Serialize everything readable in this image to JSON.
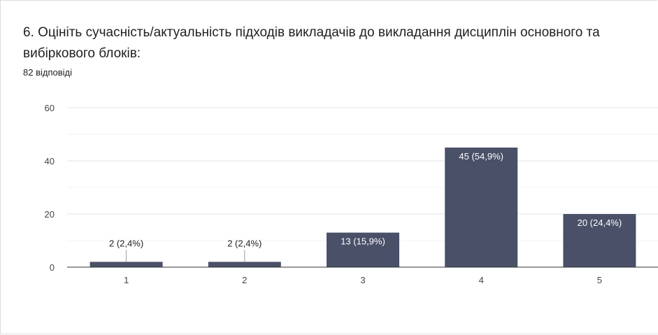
{
  "header": {
    "title": "6. Оцініть сучасність/актуальність підходів викладачів до викладання дисциплін основного та вибіркового блоків:",
    "responses": "82 відповіді"
  },
  "chart_data": {
    "type": "bar",
    "categories": [
      "1",
      "2",
      "3",
      "4",
      "5"
    ],
    "values": [
      2,
      2,
      13,
      45,
      20
    ],
    "data_labels": [
      "2 (2,4%)",
      "2 (2,4%)",
      "13 (15,9%)",
      "45 (54,9%)",
      "20 (24,4%)"
    ],
    "ylim": [
      0,
      60
    ],
    "yticks": [
      0,
      20,
      40,
      60
    ],
    "grid": true,
    "legend": "none",
    "bar_color": "#4a5068",
    "label_inside_color": "#ffffff",
    "label_outside_color": "#202124"
  }
}
